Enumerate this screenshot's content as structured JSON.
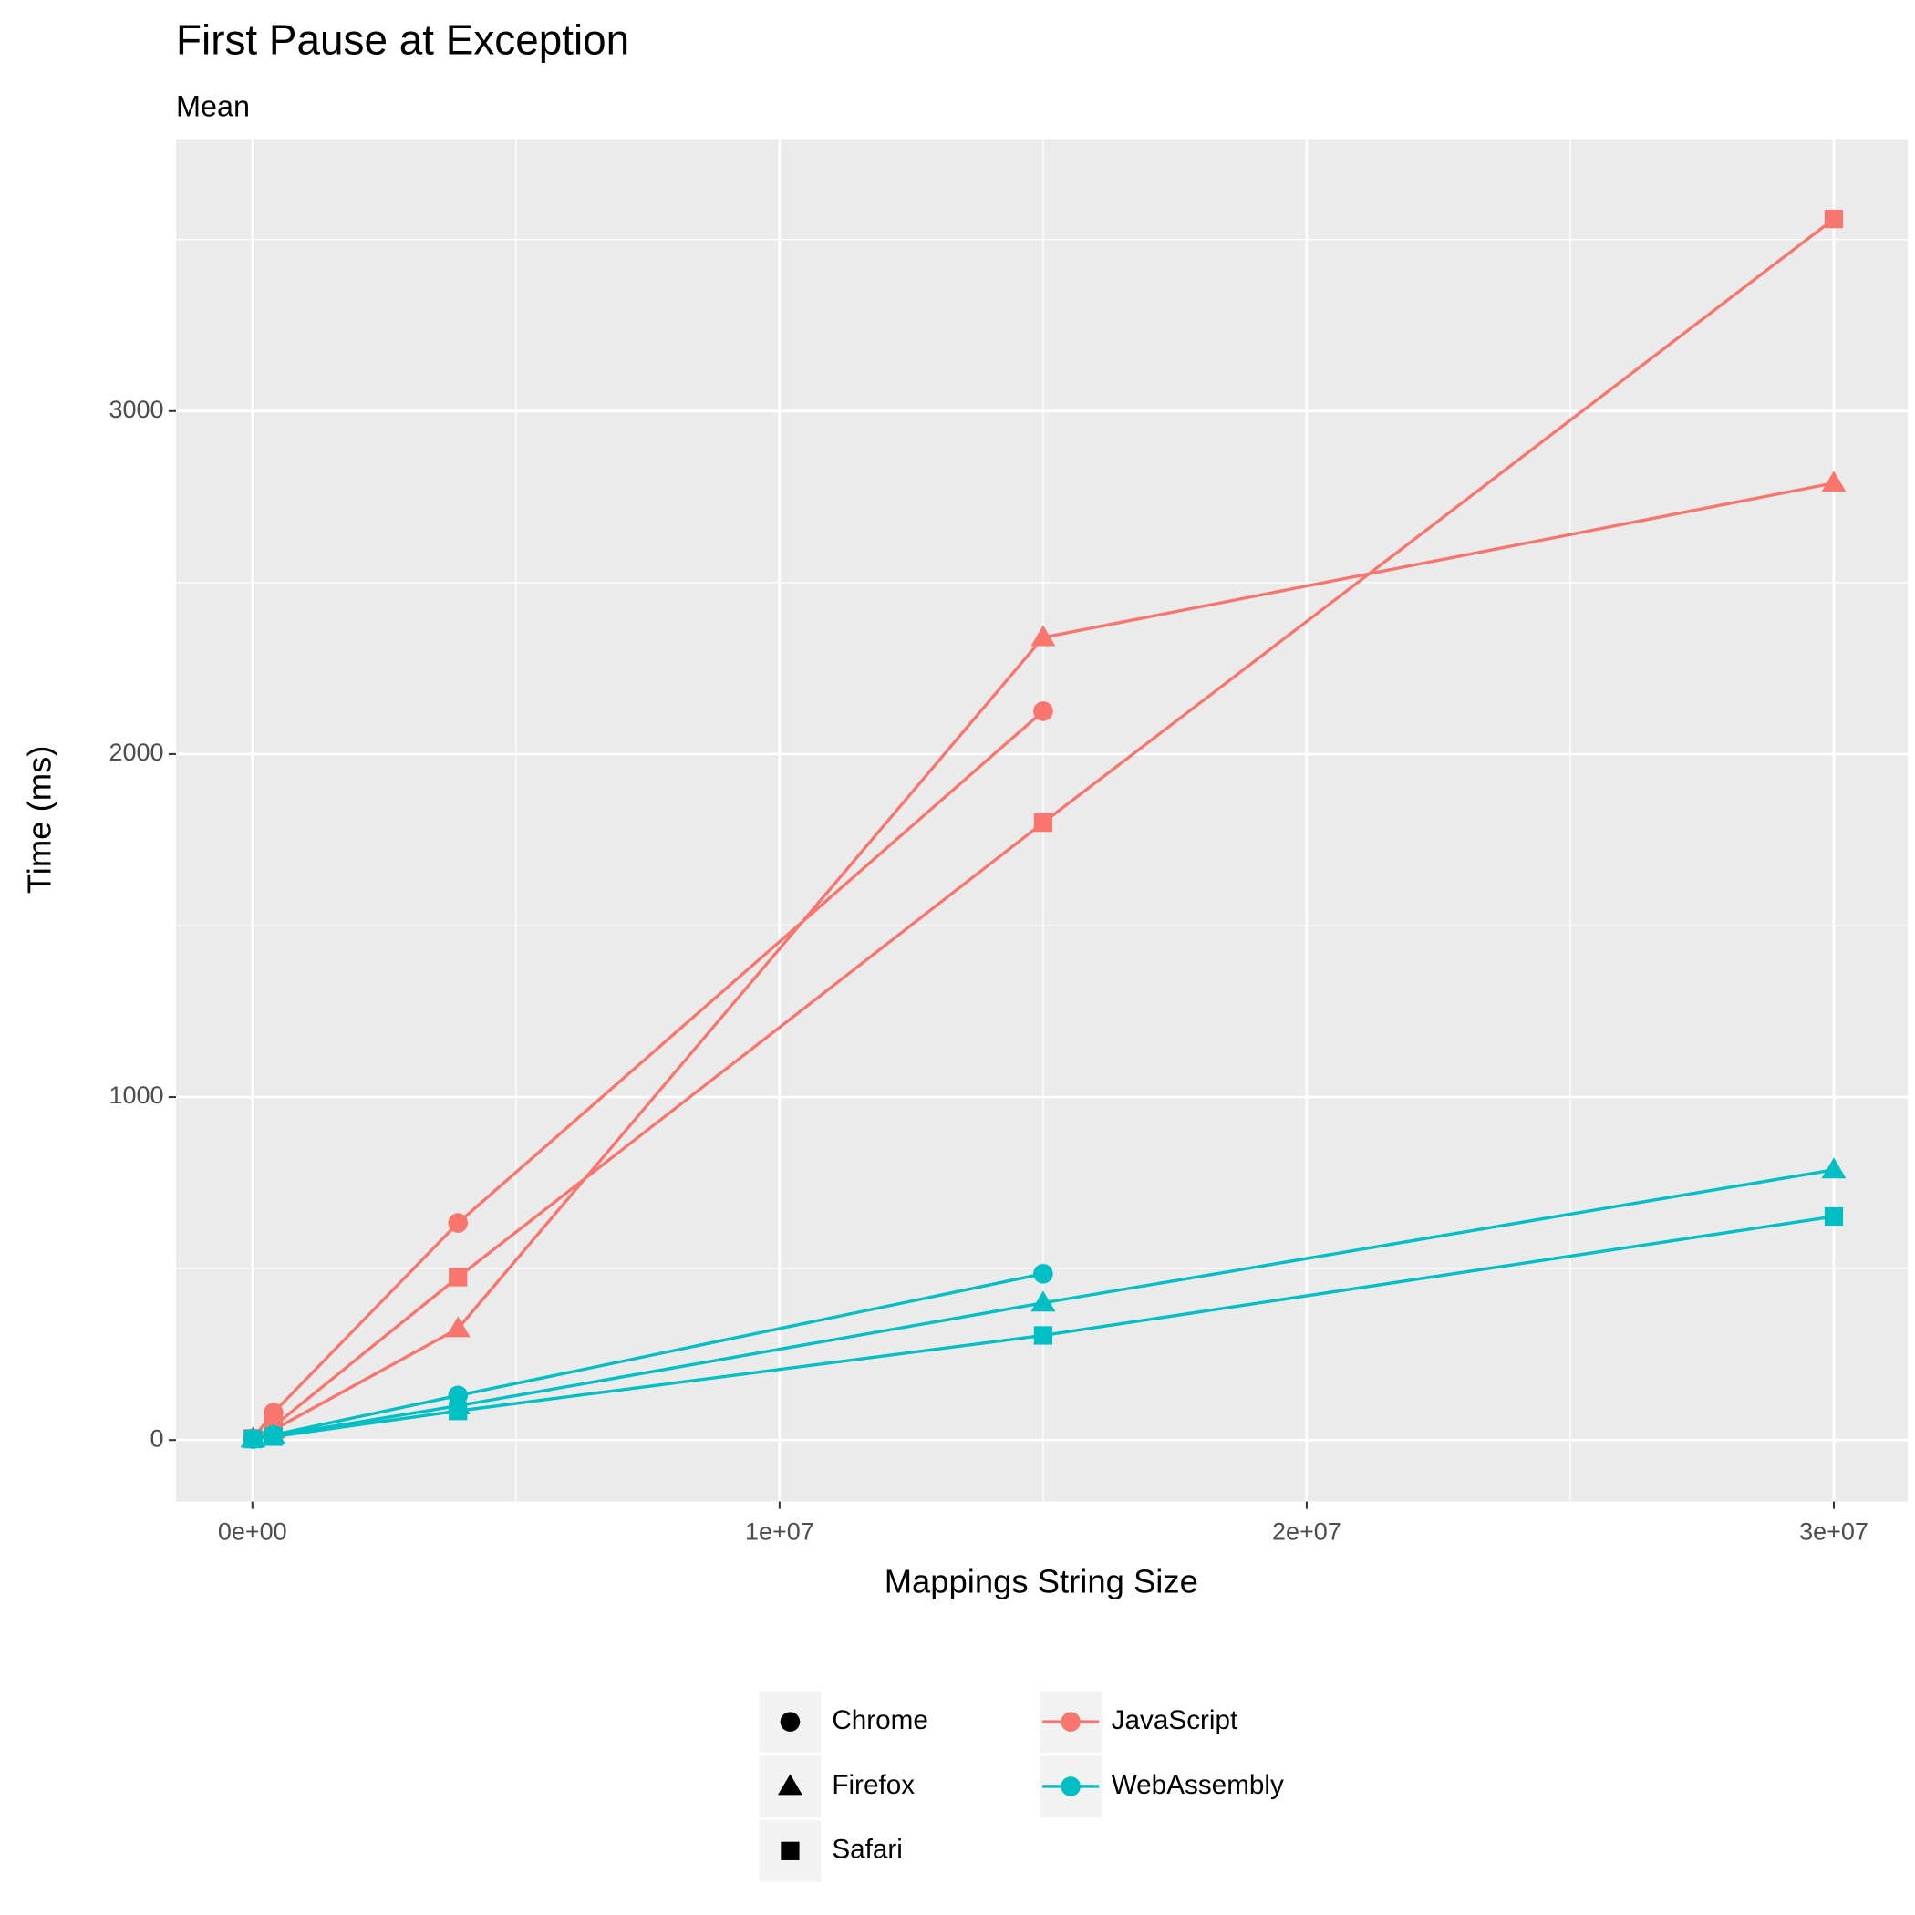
{
  "chart_data": {
    "type": "line",
    "title": "First Pause at Exception",
    "subtitle": "Mean",
    "x_label": "Mappings String Size",
    "y_label": "Time (ms)",
    "x": [
      10000,
      400000,
      3900000,
      15000000,
      30000000
    ],
    "xlim": [
      -1450000,
      31400000
    ],
    "ylim": [
      -179,
      3793
    ],
    "xticks": [
      {
        "value": 0,
        "label": "0e+00"
      },
      {
        "value": 10000000,
        "label": "1e+07"
      },
      {
        "value": 20000000,
        "label": "2e+07"
      },
      {
        "value": 30000000,
        "label": "3e+07"
      }
    ],
    "yticks": [
      0,
      1000,
      2000,
      3000
    ],
    "grid": true,
    "legend_position": "bottom",
    "legend": {
      "shape": [
        {
          "name": "Chrome",
          "shape": "circle"
        },
        {
          "name": "Firefox",
          "shape": "triangle"
        },
        {
          "name": "Safari",
          "shape": "square"
        }
      ],
      "color": [
        {
          "name": "JavaScript",
          "color": "#F8766D"
        },
        {
          "name": "WebAssembly",
          "color": "#00BFC4"
        }
      ]
    },
    "series": [
      {
        "language": 0,
        "browser": 0,
        "values": [
          5,
          80,
          633,
          2125,
          null
        ]
      },
      {
        "language": 0,
        "browser": 1,
        "values": [
          5,
          30,
          325,
          2340,
          2790
        ]
      },
      {
        "language": 0,
        "browser": 2,
        "values": [
          5,
          40,
          475,
          1800,
          3560
        ]
      },
      {
        "language": 1,
        "browser": 0,
        "values": [
          3,
          15,
          130,
          485,
          null
        ]
      },
      {
        "language": 1,
        "browser": 1,
        "values": [
          3,
          12,
          100,
          400,
          788
        ]
      },
      {
        "language": 1,
        "browser": 2,
        "values": [
          3,
          10,
          85,
          305,
          652
        ]
      }
    ]
  }
}
